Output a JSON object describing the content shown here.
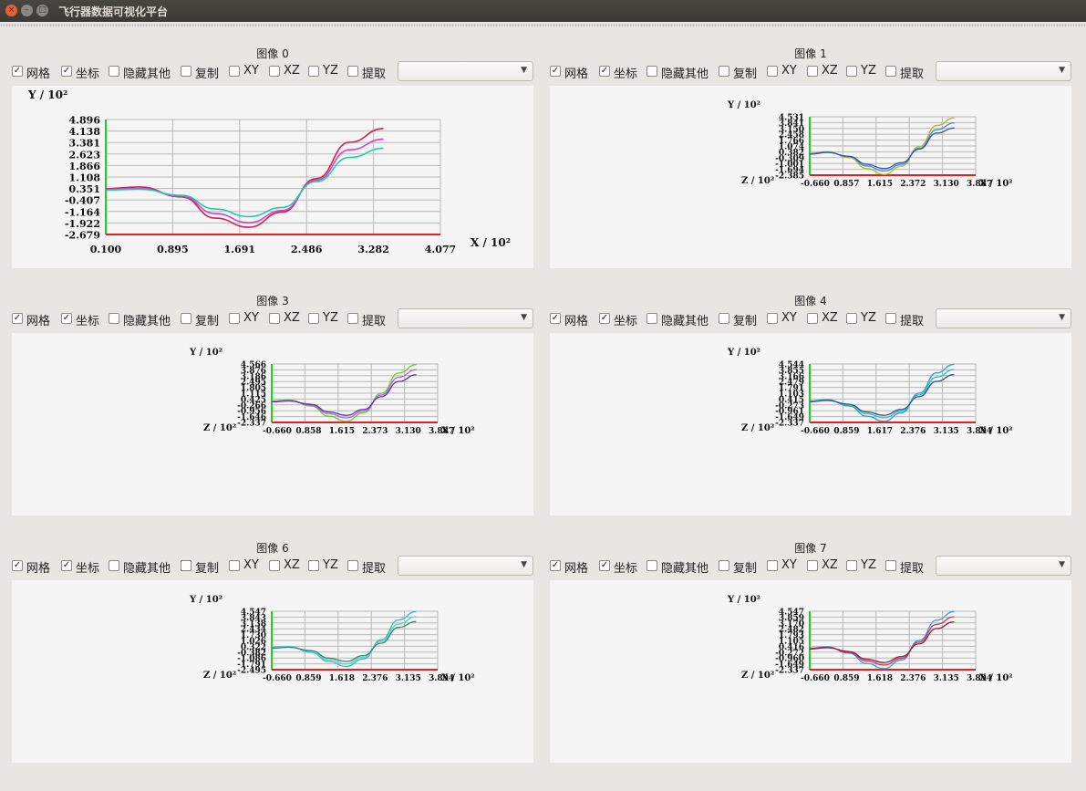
{
  "window": {
    "title": "飞行器数据可视化平台",
    "buttons": {
      "close": "×",
      "minimize": "–",
      "maximize": "□"
    }
  },
  "controls": {
    "grid": "网格",
    "axes": "坐标",
    "hide_others": "隐藏其他",
    "copy": "复制",
    "xy": "XY",
    "xz": "XZ",
    "yz": "YZ",
    "extract": "提取",
    "grid_checked": true,
    "axes_checked": true
  },
  "colors": {
    "grid": "#b8b8b8",
    "y_axis": "#22cc22",
    "x_axis": "#dd2222"
  },
  "panels": [
    {
      "title": "图像 0",
      "chart_data": {
        "type": "line",
        "ylabel": "Y / 10²",
        "xlabel": "X / 10²",
        "zlabel": "",
        "yticks": [
          "4.896",
          "4.138",
          "3.381",
          "2.623",
          "1.866",
          "1.108",
          "0.351",
          "-0.407",
          "-1.164",
          "-1.922",
          "-2.679"
        ],
        "xticks": [
          "0.100",
          "0.895",
          "1.691",
          "2.486",
          "3.282",
          "4.077"
        ],
        "ylim": [
          -2.679,
          4.896
        ],
        "xlim": [
          0.1,
          4.077
        ],
        "series": [
          {
            "color": "#cc2255",
            "x": [
              0.1,
              0.5,
              1.0,
              1.4,
              1.8,
              2.2,
              2.6,
              3.0,
              3.4
            ],
            "y": [
              0.35,
              0.45,
              -0.2,
              -1.6,
              -2.2,
              -1.2,
              1.0,
              3.4,
              4.3
            ]
          },
          {
            "color": "#cc44cc",
            "x": [
              0.1,
              0.5,
              1.0,
              1.4,
              1.8,
              2.2,
              2.6,
              3.0,
              3.4
            ],
            "y": [
              0.3,
              0.35,
              -0.15,
              -1.3,
              -1.9,
              -1.1,
              0.9,
              2.9,
              3.6
            ]
          },
          {
            "color": "#22ccaa",
            "x": [
              0.1,
              0.5,
              1.0,
              1.4,
              1.8,
              2.2,
              2.6,
              3.0,
              3.4
            ],
            "y": [
              0.25,
              0.3,
              -0.1,
              -1.0,
              -1.5,
              -0.9,
              0.8,
              2.4,
              3.0
            ]
          }
        ]
      }
    },
    {
      "title": "图像 1",
      "chart_data": {
        "type": "line",
        "ylabel": "Y / 10²",
        "xlabel": "X / 10²",
        "zlabel": "Z / 10²",
        "yticks": [
          "4.531",
          "3.841",
          "3.150",
          "2.458",
          "1.766",
          "1.074",
          "0.382",
          "-0.309",
          "-1.001",
          "-1.694",
          "-2.385"
        ],
        "xticks": [
          "-0.660",
          "0.857",
          "1.615",
          "2.372",
          "3.130",
          "3.887"
        ],
        "ylim": [
          -2.385,
          4.531
        ],
        "xlim": [
          0.1,
          3.887
        ],
        "series": [
          {
            "color": "#b8b820",
            "x": [
              0.1,
              0.5,
              1.0,
              1.4,
              1.8,
              2.2,
              2.6,
              3.0,
              3.4
            ],
            "y": [
              0.2,
              0.4,
              -0.3,
              -1.6,
              -2.3,
              -1.3,
              1.0,
              3.5,
              4.4
            ]
          },
          {
            "color": "#4488dd",
            "x": [
              0.1,
              0.5,
              1.0,
              1.4,
              1.8,
              2.2,
              2.6,
              3.0,
              3.4
            ],
            "y": [
              0.15,
              0.35,
              -0.2,
              -1.3,
              -1.9,
              -1.1,
              0.8,
              3.0,
              3.8
            ]
          },
          {
            "color": "#3355aa",
            "x": [
              0.1,
              0.5,
              1.0,
              1.4,
              1.8,
              2.2,
              2.6,
              3.0,
              3.4
            ],
            "y": [
              0.1,
              0.3,
              -0.15,
              -1.1,
              -1.6,
              -0.9,
              0.7,
              2.6,
              3.2
            ]
          }
        ]
      }
    },
    {
      "title": "图像 3",
      "chart_data": {
        "type": "line",
        "ylabel": "Y / 10²",
        "xlabel": "X / 10²",
        "zlabel": "Z / 10²",
        "yticks": [
          "4.566",
          "3.876",
          "3.186",
          "2.495",
          "1.805",
          "1.115",
          "0.425",
          "-0.266",
          "-0.956",
          "-1.646",
          "-2.337"
        ],
        "xticks": [
          "-0.660",
          "0.858",
          "1.615",
          "2.373",
          "3.130",
          "3.887"
        ],
        "ylim": [
          -2.337,
          4.566
        ],
        "xlim": [
          0.1,
          3.887
        ],
        "series": [
          {
            "color": "#66cc33",
            "x": [
              0.1,
              0.5,
              1.0,
              1.4,
              1.8,
              2.2,
              2.6,
              3.0,
              3.4
            ],
            "y": [
              0.2,
              0.3,
              -0.4,
              -1.6,
              -2.2,
              -1.2,
              1.1,
              3.5,
              4.5
            ]
          },
          {
            "color": "#aa66dd",
            "x": [
              0.1,
              0.5,
              1.0,
              1.4,
              1.8,
              2.2,
              2.6,
              3.0,
              3.4
            ],
            "y": [
              0.15,
              0.25,
              -0.3,
              -1.3,
              -1.8,
              -1.0,
              0.9,
              3.0,
              3.9
            ]
          },
          {
            "color": "#6633aa",
            "x": [
              0.1,
              0.5,
              1.0,
              1.4,
              1.8,
              2.2,
              2.6,
              3.0,
              3.4
            ],
            "y": [
              0.1,
              0.2,
              -0.2,
              -1.1,
              -1.5,
              -0.8,
              0.7,
              2.5,
              3.3
            ]
          }
        ]
      }
    },
    {
      "title": "图像 4",
      "chart_data": {
        "type": "line",
        "ylabel": "Y / 10²",
        "xlabel": "X / 10²",
        "zlabel": "Z / 10²",
        "yticks": [
          "4.544",
          "3.855",
          "3.166",
          "2.479",
          "1.791",
          "1.103",
          "0.415",
          "-0.273",
          "-0.961",
          "-1.649",
          "-2.337"
        ],
        "xticks": [
          "-0.660",
          "0.859",
          "1.617",
          "2.376",
          "3.135",
          "3.894"
        ],
        "ylim": [
          -2.337,
          4.544
        ],
        "xlim": [
          0.1,
          3.894
        ],
        "series": [
          {
            "color": "#3399dd",
            "x": [
              0.1,
              0.5,
              1.0,
              1.4,
              1.8,
              2.2,
              2.6,
              3.0,
              3.4
            ],
            "y": [
              0.2,
              0.35,
              -0.4,
              -1.6,
              -2.2,
              -1.2,
              1.1,
              3.5,
              4.5
            ]
          },
          {
            "color": "#33bbaa",
            "x": [
              0.1,
              0.5,
              1.0,
              1.4,
              1.8,
              2.2,
              2.6,
              3.0,
              3.4
            ],
            "y": [
              0.15,
              0.3,
              -0.3,
              -1.3,
              -1.8,
              -1.0,
              0.9,
              3.0,
              3.9
            ]
          },
          {
            "color": "#335599",
            "x": [
              0.1,
              0.5,
              1.0,
              1.4,
              1.8,
              2.2,
              2.6,
              3.0,
              3.4
            ],
            "y": [
              0.1,
              0.25,
              -0.2,
              -1.1,
              -1.5,
              -0.8,
              0.7,
              2.5,
              3.3
            ]
          }
        ]
      }
    },
    {
      "title": "图像 6",
      "chart_data": {
        "type": "line",
        "ylabel": "Y / 10²",
        "xlabel": "X / 10²",
        "zlabel": "Z / 10²",
        "yticks": [
          "4.547",
          "3.843",
          "3.138",
          "2.434",
          "1.730",
          "1.026",
          "0.322",
          "-0.382",
          "-1.086",
          "-1.791",
          "-2.495"
        ],
        "xticks": [
          "-0.660",
          "0.859",
          "1.618",
          "2.376",
          "3.135",
          "3.894"
        ],
        "ylim": [
          -2.495,
          4.547
        ],
        "xlim": [
          0.1,
          3.894
        ],
        "series": [
          {
            "color": "#33bbcc",
            "x": [
              0.1,
              0.5,
              1.0,
              1.4,
              1.8,
              2.2,
              2.6,
              3.0,
              3.4
            ],
            "y": [
              0.2,
              0.3,
              -0.4,
              -1.5,
              -2.1,
              -1.2,
              1.1,
              3.5,
              4.5
            ]
          },
          {
            "color": "#66ccbb",
            "x": [
              0.1,
              0.5,
              1.0,
              1.4,
              1.8,
              2.2,
              2.6,
              3.0,
              3.4
            ],
            "y": [
              0.15,
              0.25,
              -0.3,
              -1.3,
              -1.8,
              -1.0,
              0.9,
              3.0,
              3.9
            ]
          },
          {
            "color": "#338877",
            "x": [
              0.1,
              0.5,
              1.0,
              1.4,
              1.8,
              2.2,
              2.6,
              3.0,
              3.4
            ],
            "y": [
              0.1,
              0.2,
              -0.2,
              -1.1,
              -1.5,
              -0.8,
              0.7,
              2.6,
              3.3
            ]
          }
        ]
      }
    },
    {
      "title": "图像 7",
      "chart_data": {
        "type": "line",
        "ylabel": "Y / 10²",
        "xlabel": "X / 10²",
        "zlabel": "Z / 10²",
        "yticks": [
          "4.547",
          "3.859",
          "3.170",
          "2.482",
          "1.793",
          "1.105",
          "0.416",
          "-0.272",
          "-0.960",
          "-1.649",
          "-2.337"
        ],
        "xticks": [
          "-0.660",
          "0.859",
          "1.618",
          "2.376",
          "3.135",
          "3.894"
        ],
        "ylim": [
          -2.337,
          4.547
        ],
        "xlim": [
          0.1,
          3.894
        ],
        "series": [
          {
            "color": "#4499dd",
            "x": [
              0.1,
              0.5,
              1.0,
              1.4,
              1.8,
              2.2,
              2.6,
              3.0,
              3.4
            ],
            "y": [
              0.2,
              0.35,
              -0.4,
              -1.6,
              -2.2,
              -1.2,
              1.1,
              3.5,
              4.5
            ]
          },
          {
            "color": "#cc3355",
            "x": [
              0.1,
              0.5,
              1.0,
              1.4,
              1.8,
              2.2,
              2.6,
              3.0,
              3.4
            ],
            "y": [
              0.15,
              0.3,
              -0.3,
              -1.3,
              -1.8,
              -1.0,
              0.9,
              3.0,
              3.9
            ]
          },
          {
            "color": "#882244",
            "x": [
              0.1,
              0.5,
              1.0,
              1.4,
              1.8,
              2.2,
              2.6,
              3.0,
              3.4
            ],
            "y": [
              0.1,
              0.25,
              -0.2,
              -1.1,
              -1.5,
              -0.8,
              0.7,
              2.5,
              3.3
            ]
          }
        ]
      }
    }
  ]
}
